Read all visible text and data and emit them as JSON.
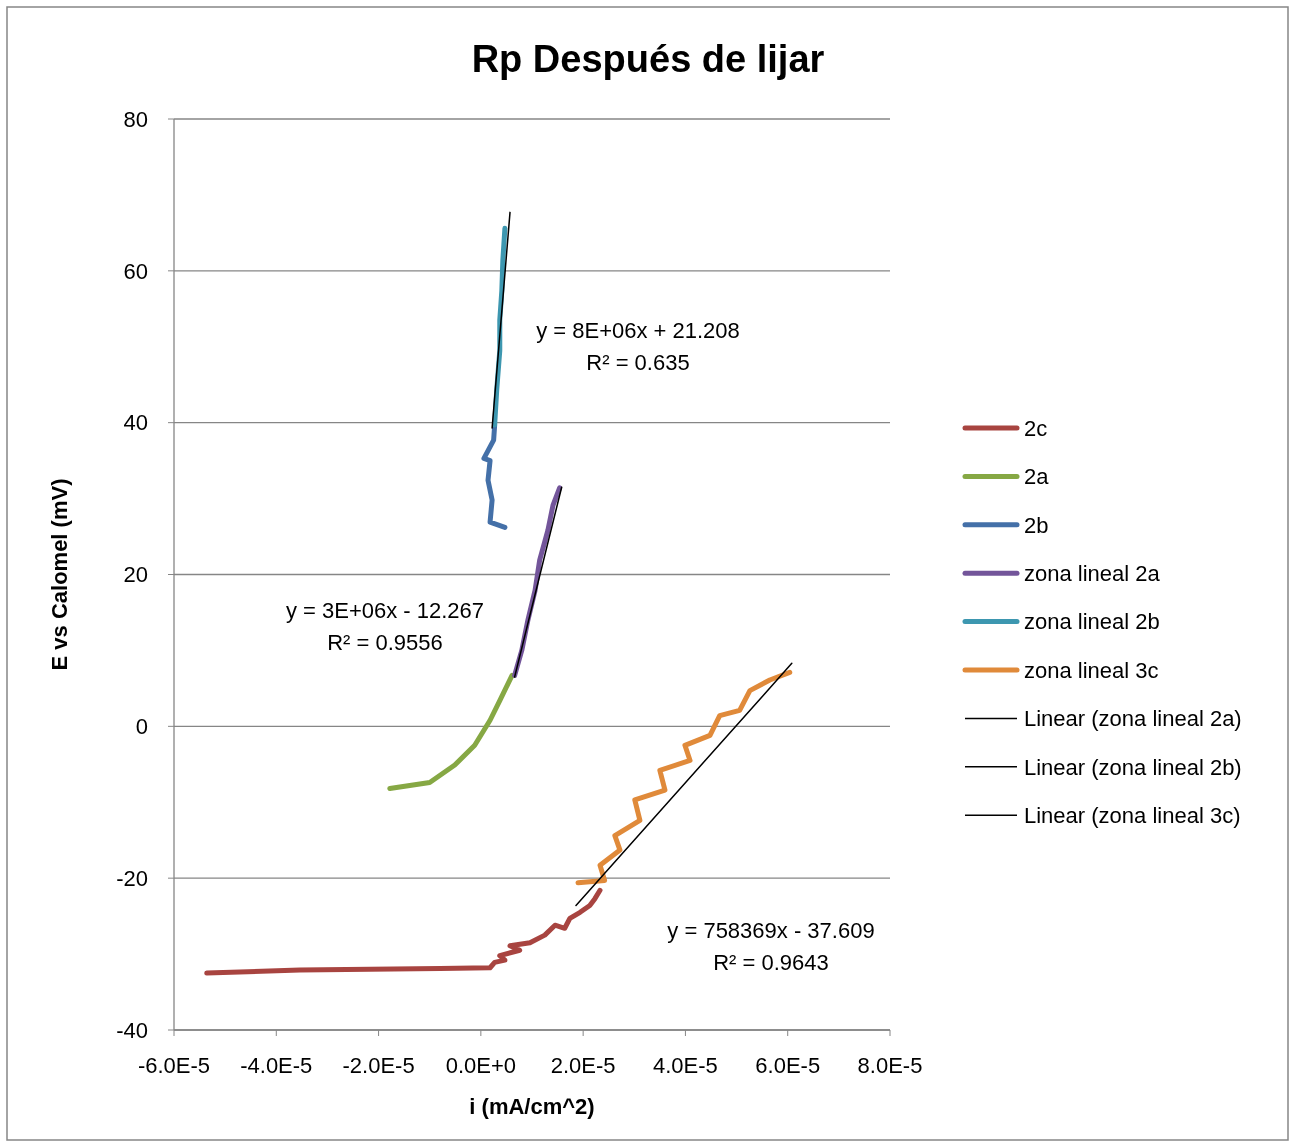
{
  "chart_data": {
    "type": "line",
    "title": "Rp Después de lijar",
    "xlabel": "i (mA/cm^2)",
    "ylabel": "E vs Calomel (mV)",
    "xlim": [
      -6e-05,
      8e-05
    ],
    "xticks": [
      {
        "value": -6e-05,
        "label": "-6.0E-5"
      },
      {
        "value": -4e-05,
        "label": "-4.0E-5"
      },
      {
        "value": -2e-05,
        "label": "-2.0E-5"
      },
      {
        "value": 0,
        "label": "0.0E+0"
      },
      {
        "value": 2e-05,
        "label": "2.0E-5"
      },
      {
        "value": 4e-05,
        "label": "4.0E-5"
      },
      {
        "value": 6e-05,
        "label": "6.0E-5"
      },
      {
        "value": 8e-05,
        "label": "8.0E-5"
      }
    ],
    "ylim": [
      -40,
      80
    ],
    "yticks": [
      -40,
      -20,
      0,
      20,
      40,
      60,
      80
    ],
    "grid": "y",
    "legend": "right",
    "marker": "none",
    "line_style": "solid",
    "series": [
      {
        "name": "2c",
        "color": "#a84440",
        "x": [
          -5.36e-05,
          -3.54e-05,
          -8e-06,
          1.8e-06,
          2.7e-06,
          4.7e-06,
          3.7e-06,
          7.6e-06,
          5.7e-06,
          9.6e-06,
          1.25e-05,
          1.45e-05,
          1.64e-05,
          1.74e-05,
          1.94e-05,
          2.13e-05,
          2.23e-05,
          2.33e-05
        ],
        "values": [
          -32.5,
          -32.1,
          -31.9,
          -31.8,
          -31.1,
          -30.8,
          -30.2,
          -29.5,
          -28.9,
          -28.5,
          -27.5,
          -26.2,
          -26.6,
          -25.3,
          -24.5,
          -23.6,
          -22.7,
          -21.6
        ]
      },
      {
        "name": "2a",
        "color": "#86a844",
        "x": [
          -1.78e-05,
          -1e-05,
          -5.1e-06,
          -1.2e-06,
          1.8e-06,
          3.7e-06,
          6.1e-06
        ],
        "values": [
          -8.2,
          -7.4,
          -5.1,
          -2.5,
          0.8,
          3.4,
          6.7
        ]
      },
      {
        "name": "2b",
        "color": "#4470a8",
        "x": [
          4.7e-06,
          1.8e-06,
          2.2e-06,
          1.4e-06,
          1.8e-06,
          6e-07,
          2.5e-06,
          2.7e-06
        ],
        "values": [
          26.2,
          26.9,
          29.8,
          32.4,
          35.0,
          35.3,
          37.7,
          39.7
        ]
      },
      {
        "name": "zona lineal 2a",
        "color": "#73559a",
        "x": [
          6.6e-06,
          8e-06,
          9.2e-06,
          1.06e-05,
          1.15e-05,
          1.31e-05,
          1.41e-05,
          1.54e-05
        ],
        "values": [
          6.7,
          10.0,
          14.0,
          17.9,
          21.9,
          25.8,
          29.1,
          31.4
        ]
      },
      {
        "name": "zona lineal 2b",
        "color": "#3d97b0",
        "x": [
          2.7e-06,
          3.1e-06,
          3.7e-06,
          3.7e-06,
          4.1e-06,
          4.3e-06,
          4.7e-06
        ],
        "values": [
          39.7,
          44.3,
          49.5,
          53.5,
          57.4,
          61.4,
          65.6
        ]
      },
      {
        "name": "zona lineal 3c",
        "color": "#e08a3a",
        "x": [
          1.9e-05,
          2.42e-05,
          2.33e-05,
          2.72e-05,
          2.62e-05,
          3.11e-05,
          3.01e-05,
          3.6e-05,
          3.5e-05,
          4.09e-05,
          3.99e-05,
          4.48e-05,
          4.67e-05,
          5.06e-05,
          5.26e-05,
          5.65e-05,
          6.04e-05
        ],
        "values": [
          -20.6,
          -20.3,
          -18.3,
          -16.3,
          -14.4,
          -12.4,
          -9.7,
          -8.4,
          -5.8,
          -4.5,
          -2.5,
          -1.2,
          1.4,
          2.1,
          4.7,
          6.1,
          7.1
        ]
      },
      {
        "name": "Linear (zona lineal 2a)",
        "color": "#000000",
        "x": [
          6.6e-06,
          1.58e-05
        ],
        "values": [
          6.5,
          31.5
        ]
      },
      {
        "name": "Linear (zona lineal 2b)",
        "color": "#000000",
        "x": [
          2.2e-06,
          5.7e-06
        ],
        "values": [
          39.3,
          67.7
        ]
      },
      {
        "name": "Linear (zona lineal 3c)",
        "color": "#000000",
        "x": [
          1.86e-05,
          6.08e-05
        ],
        "values": [
          -23.6,
          8.3
        ]
      }
    ],
    "annotations": [
      "y = 8E+06x + 21.208",
      "R² = 0.635",
      "y = 3E+06x - 12.267",
      "R² = 0.9556",
      "y = 758369x - 37.609",
      "R² = 0.9643"
    ]
  }
}
